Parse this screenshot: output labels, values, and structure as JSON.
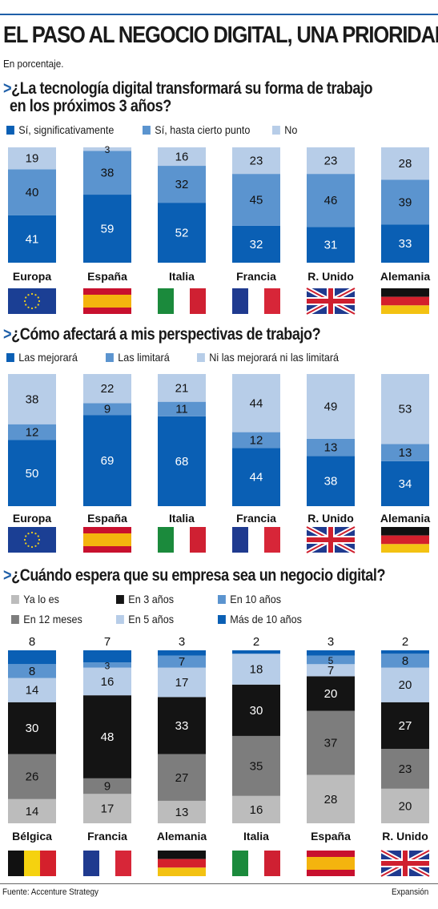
{
  "title": "EL PASO AL NEGOCIO DIGITAL, UNA PRIORIDAD",
  "subtitle": "En porcentaje.",
  "source": "Fuente: Accenture Strategy",
  "brand": "Expansión",
  "q1": {
    "question_line1": "¿La tecnología digital transformará su forma de trabajo",
    "question_line2": "en los próximos 3 años?",
    "legend": [
      "Sí, significativamente",
      "Sí, hasta cierto punto",
      "No"
    ]
  },
  "q2": {
    "question": "¿Cómo afectará a mis perspectivas de trabajo?",
    "legend": [
      "Las mejorará",
      "Las limitará",
      "Ni las mejorará ni las limitará"
    ]
  },
  "q3": {
    "question": "¿Cuándo espera que su empresa sea un negocio digital?",
    "legend": [
      "Ya lo es",
      "En 3 años",
      "En 10 años",
      "En 12 meses",
      "En 5 años",
      "Más de 10 años"
    ]
  },
  "colors": {
    "dark_blue": "#0a5fb4",
    "mid_blue": "#5b94cf",
    "light_blue": "#b7cde8",
    "light_gray": "#bcbcbc",
    "dark_gray": "#7d7d7d",
    "black": "#141414"
  },
  "chart_data": [
    {
      "type": "bar",
      "stacked": true,
      "title": "¿La tecnología digital transformará su forma de trabajo en los próximos 3 años?",
      "categories": [
        "Europa",
        "España",
        "Italia",
        "Francia",
        "R. Unido",
        "Alemania"
      ],
      "series": [
        {
          "name": "Sí, significativamente",
          "color": "#0a5fb4",
          "values": [
            41,
            59,
            52,
            32,
            31,
            33
          ]
        },
        {
          "name": "Sí, hasta cierto punto",
          "color": "#5b94cf",
          "values": [
            40,
            38,
            32,
            45,
            46,
            39
          ]
        },
        {
          "name": "No",
          "color": "#b7cde8",
          "values": [
            19,
            3,
            16,
            23,
            23,
            28
          ]
        }
      ],
      "flags": [
        "eu",
        "es",
        "it",
        "fr",
        "uk",
        "de"
      ]
    },
    {
      "type": "bar",
      "stacked": true,
      "title": "¿Cómo afectará a mis perspectivas de trabajo?",
      "categories": [
        "Europa",
        "España",
        "Italia",
        "Francia",
        "R. Unido",
        "Alemania"
      ],
      "series": [
        {
          "name": "Las mejorará",
          "color": "#0a5fb4",
          "values": [
            50,
            69,
            68,
            44,
            38,
            34
          ]
        },
        {
          "name": "Las limitará",
          "color": "#5b94cf",
          "values": [
            12,
            9,
            11,
            12,
            13,
            13
          ]
        },
        {
          "name": "Ni las mejorará ni las limitará",
          "color": "#b7cde8",
          "values": [
            38,
            22,
            21,
            44,
            49,
            53
          ]
        }
      ],
      "flags": [
        "eu",
        "es",
        "it",
        "fr",
        "uk",
        "de"
      ]
    },
    {
      "type": "bar",
      "stacked": true,
      "title": "¿Cuándo espera que su empresa sea un negocio digital?",
      "categories": [
        "Bélgica",
        "Francia",
        "Alemania",
        "Italia",
        "España",
        "R. Unido"
      ],
      "series": [
        {
          "name": "Ya lo es",
          "color": "#bcbcbc",
          "values": [
            14,
            17,
            13,
            16,
            28,
            20
          ]
        },
        {
          "name": "En 12 meses",
          "color": "#7d7d7d",
          "values": [
            26,
            9,
            27,
            35,
            37,
            23
          ]
        },
        {
          "name": "En 3 años",
          "color": "#141414",
          "values": [
            30,
            48,
            33,
            30,
            20,
            27
          ]
        },
        {
          "name": "En 5 años",
          "color": "#b7cde8",
          "values": [
            14,
            16,
            17,
            18,
            7,
            20
          ]
        },
        {
          "name": "En 10 años",
          "color": "#5b94cf",
          "values": [
            8,
            3,
            7,
            0,
            5,
            8
          ]
        },
        {
          "name": "Más de 10 años",
          "color": "#0a5fb4",
          "values": [
            8,
            7,
            3,
            2,
            3,
            2
          ]
        }
      ],
      "top_labels": [
        8,
        7,
        3,
        2,
        3,
        2
      ],
      "flags": [
        "be",
        "fr",
        "de",
        "it",
        "es",
        "uk"
      ]
    }
  ]
}
